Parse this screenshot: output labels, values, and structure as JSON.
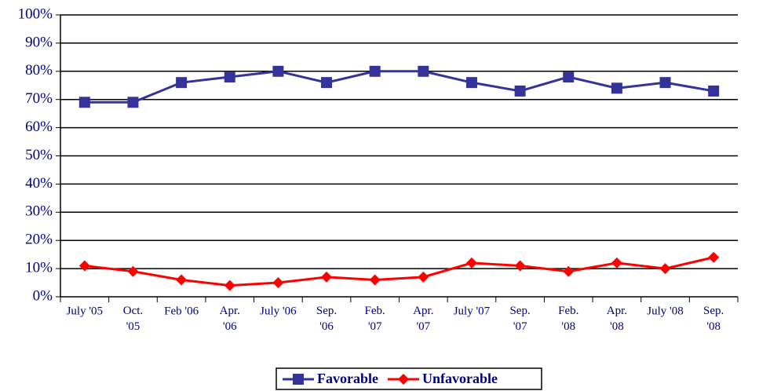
{
  "chart_data": {
    "type": "line",
    "categories": [
      "July '05",
      "Oct. '05",
      "Feb '06",
      "Apr. '06",
      "July '06",
      "Sep. '06",
      "Feb. '07",
      "Apr. '07",
      "July '07",
      "Sep. '07",
      "Feb. '08",
      "Apr. '08",
      "July '08",
      "Sep. '08"
    ],
    "series": [
      {
        "name": "Favorable",
        "color": "#333399",
        "marker": "square",
        "values": [
          69,
          69,
          76,
          78,
          80,
          76,
          80,
          80,
          76,
          73,
          78,
          74,
          76,
          73
        ]
      },
      {
        "name": "Unfavorable",
        "color": "#ff0000",
        "marker": "diamond",
        "values": [
          11,
          9,
          6,
          4,
          5,
          7,
          6,
          7,
          12,
          11,
          9,
          12,
          10,
          14
        ]
      }
    ],
    "ylim": [
      0,
      100
    ],
    "yticks": [
      {
        "value": 0,
        "label": "0%"
      },
      {
        "value": 10,
        "label": "10%"
      },
      {
        "value": 20,
        "label": "20%"
      },
      {
        "value": 30,
        "label": "30%"
      },
      {
        "value": 40,
        "label": "40%"
      },
      {
        "value": 50,
        "label": "50%"
      },
      {
        "value": 60,
        "label": "60%"
      },
      {
        "value": 70,
        "label": "70%"
      },
      {
        "value": 80,
        "label": "80%"
      },
      {
        "value": 90,
        "label": "90%"
      },
      {
        "value": 100,
        "label": "100%"
      }
    ],
    "grid": true,
    "legend": "bottom"
  }
}
